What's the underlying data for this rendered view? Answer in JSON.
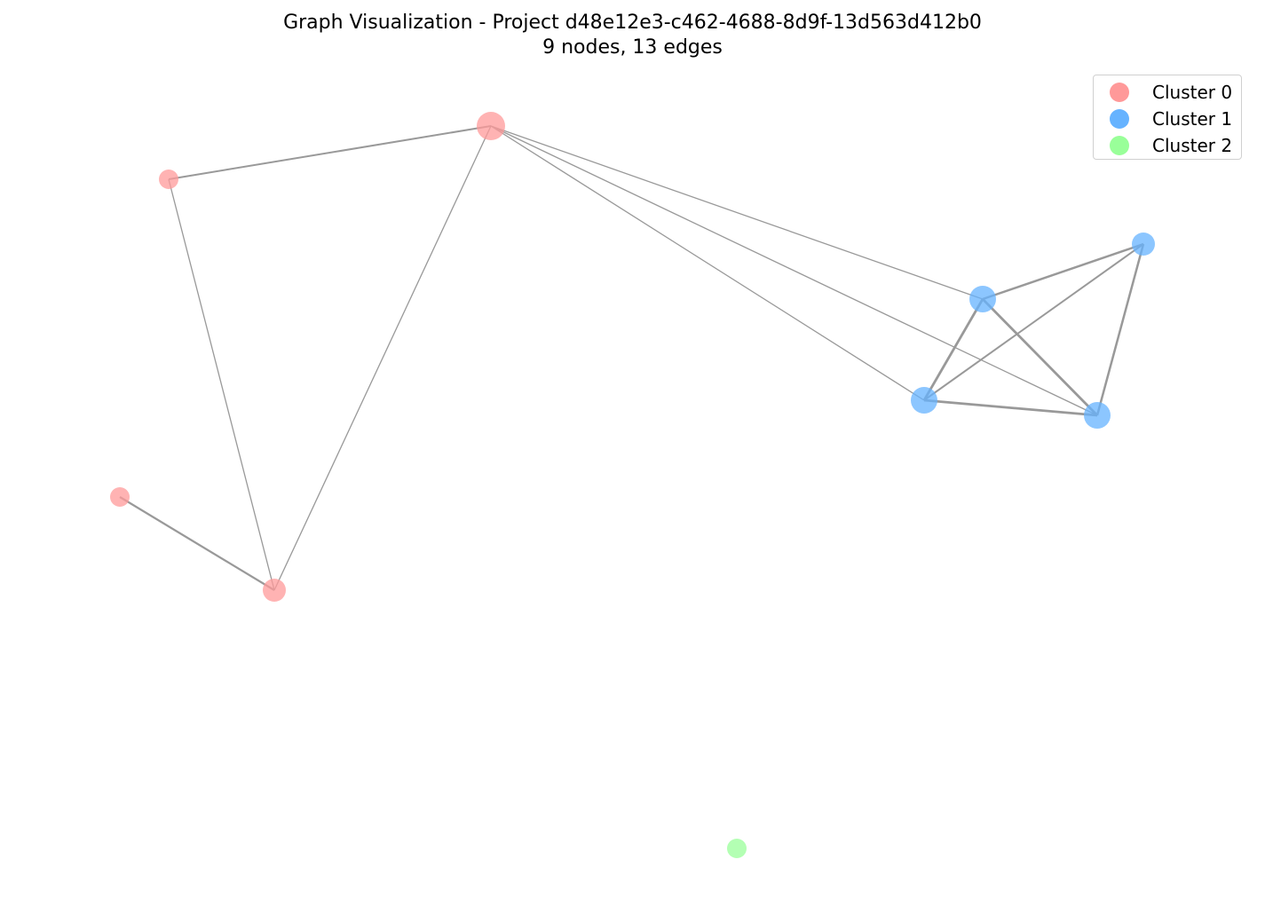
{
  "title": "Graph Visualization - Project d48e12e3-c462-4688-8d9f-13d563d412b0",
  "subtitle": "9 nodes, 13 edges",
  "legend": {
    "items": [
      {
        "label": "Cluster 0",
        "color": "#ff9999"
      },
      {
        "label": "Cluster 1",
        "color": "#66b3ff"
      },
      {
        "label": "Cluster 2",
        "color": "#99ff99"
      }
    ]
  },
  "edge_color": "#999999"
}
